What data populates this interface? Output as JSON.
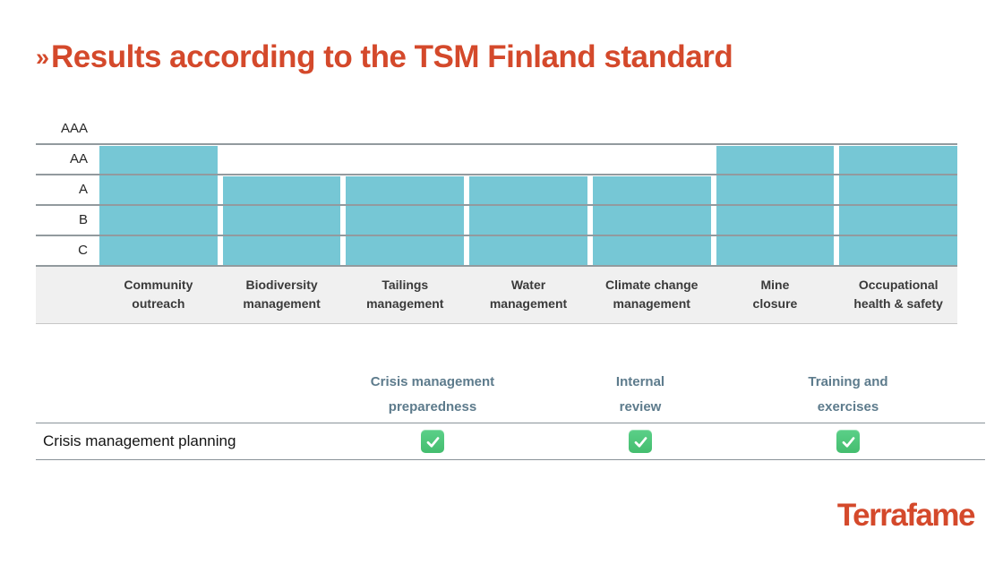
{
  "header": {
    "marker": "»",
    "title": "Results according to the TSM Finland standard"
  },
  "colors": {
    "accent": "#d4492b",
    "bar": "#76c7d5",
    "gridline": "#929a9e",
    "band_background": "#f0f0f0",
    "table_header_text": "#5d7b8c",
    "check_green": "#4cc277"
  },
  "chart_data": {
    "type": "bar",
    "title": "Results according to the TSM Finland standard",
    "rating_scale": [
      "AAA",
      "AA",
      "A",
      "B",
      "C"
    ],
    "categories": [
      "Community outreach",
      "Biodiversity management",
      "Tailings management",
      "Water management",
      "Climate change management",
      "Mine closure",
      "Occupational health & safety"
    ],
    "category_labels": [
      "Community\noutreach",
      "Biodiversity\nmanagement",
      "Tailings\nmanagement",
      "Water\nmanagement",
      "Climate change\nmanagement",
      "Mine\nclosure",
      "Occupational\nhealth & safety"
    ],
    "values": [
      "AA",
      "A",
      "A",
      "A",
      "A",
      "AA",
      "AA"
    ],
    "bar_color": "#76c7d5",
    "grid": true,
    "legend": false,
    "ylim": [
      "C",
      "AAA"
    ]
  },
  "table": {
    "columns": [
      "Crisis management\npreparedness",
      "Internal\nreview",
      "Training and\nexercises"
    ],
    "rows": [
      {
        "label": "Crisis management planning",
        "checks": [
          true,
          true,
          true
        ]
      }
    ]
  },
  "footer": {
    "logo": "Terrafame"
  }
}
